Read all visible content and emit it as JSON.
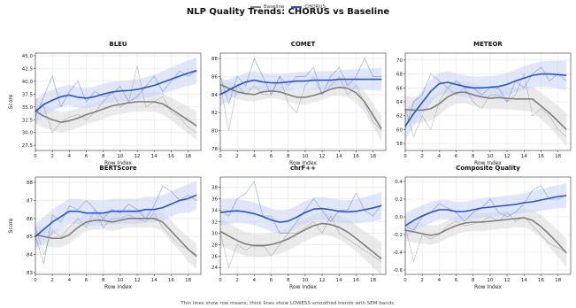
{
  "page": {
    "title": "NLP Quality Trends: CHORUS vs Baseline",
    "caption": "Thin lines show row means; thick lines show LOWESS-smoothed trends with SEM bands."
  },
  "legend": [
    {
      "label": "Baseline",
      "color": "#7f7f7f"
    },
    {
      "label": "CHORUS",
      "color": "#2a52cc"
    }
  ],
  "colors": {
    "baseline": "#7f7f7f",
    "chorus": "#2a52cc",
    "baseline_band": "#d9d9d9",
    "chorus_band": "#c7d3f5",
    "grid": "#e6e6e6"
  },
  "chart_data": [
    {
      "type": "line",
      "title": "BLEU",
      "xlabel": "Row Index",
      "ylabel": "Score",
      "x": [
        0,
        1,
        2,
        3,
        4,
        5,
        6,
        7,
        8,
        9,
        10,
        11,
        12,
        13,
        14,
        15,
        16,
        17,
        18,
        19
      ],
      "xlim": [
        0,
        19.5
      ],
      "xticks": [
        0,
        2,
        4,
        6,
        8,
        10,
        12,
        14,
        16,
        18
      ],
      "ylim": [
        26.5,
        45.5
      ],
      "yticks": [
        27.5,
        30.0,
        32.5,
        35.0,
        37.5,
        40.0,
        42.5,
        45.0
      ],
      "ytick_decimals": 1,
      "grid": true,
      "series": [
        {
          "name": "Baseline",
          "raw": [
            34.5,
            35,
            30,
            32,
            33,
            33.5,
            32.5,
            34,
            36,
            38,
            35,
            36,
            43,
            35,
            36,
            37,
            34,
            33,
            31,
            30
          ],
          "smooth": [
            34.2,
            33.2,
            32.5,
            32.0,
            32.3,
            32.8,
            33.5,
            34.0,
            34.6,
            35.2,
            35.5,
            35.8,
            36.0,
            36.0,
            36.0,
            35.6,
            34.6,
            33.5,
            32.4,
            31.3
          ],
          "sem": [
            2.5,
            2.3,
            2.1,
            2.0,
            2.0,
            1.9,
            1.9,
            1.9,
            1.9,
            1.9,
            1.9,
            1.9,
            1.9,
            1.9,
            2.0,
            2.1,
            2.2,
            2.4,
            2.6,
            2.8
          ]
        },
        {
          "name": "CHORUS",
          "raw": [
            33,
            37,
            41,
            35,
            38,
            40,
            36,
            38,
            37,
            37.5,
            39,
            36,
            37,
            39,
            41,
            38,
            40,
            42,
            41,
            42
          ],
          "smooth": [
            34.1,
            35.5,
            36.3,
            37.0,
            37.3,
            36.9,
            36.7,
            37.0,
            37.5,
            37.9,
            38.1,
            38.2,
            38.4,
            38.8,
            39.2,
            39.8,
            40.4,
            41.0,
            41.6,
            42.1
          ],
          "sem": [
            2.4,
            2.2,
            2.1,
            2.0,
            2.0,
            2.0,
            2.0,
            2.0,
            2.0,
            2.0,
            2.0,
            2.0,
            2.0,
            2.0,
            2.1,
            2.2,
            2.3,
            2.4,
            2.5,
            2.6
          ]
        }
      ]
    },
    {
      "type": "line",
      "title": "COMET",
      "xlabel": "Row Index",
      "ylabel": "",
      "x": [
        0,
        1,
        2,
        3,
        4,
        5,
        6,
        7,
        8,
        9,
        10,
        11,
        12,
        13,
        14,
        15,
        16,
        17,
        18,
        19
      ],
      "xlim": [
        0,
        19.5
      ],
      "xticks": [
        0,
        2,
        4,
        6,
        8,
        10,
        12,
        14,
        16,
        18
      ],
      "ylim": [
        77.8,
        88.6
      ],
      "yticks": [
        78,
        80,
        82,
        84,
        86,
        88
      ],
      "ytick_decimals": 0,
      "grid": true,
      "series": [
        {
          "name": "Baseline",
          "raw": [
            85,
            80,
            85,
            84,
            85,
            84,
            84,
            86,
            83,
            82,
            85,
            86,
            84,
            85,
            86,
            84,
            85,
            83,
            81,
            80
          ],
          "smooth": [
            85.1,
            84.7,
            84.3,
            84.1,
            84.0,
            84.3,
            84.4,
            84.3,
            84.0,
            83.7,
            83.7,
            83.9,
            84.2,
            84.6,
            84.8,
            84.7,
            84.2,
            83.2,
            81.7,
            80.2
          ],
          "sem": [
            0.9,
            0.8,
            0.8,
            0.8,
            0.8,
            0.8,
            0.8,
            0.8,
            0.8,
            0.8,
            0.8,
            0.8,
            0.8,
            0.8,
            0.9,
            1.0,
            1.1,
            1.2,
            1.3,
            1.4
          ]
        },
        {
          "name": "CHORUS",
          "raw": [
            86,
            83,
            86,
            85,
            88,
            86,
            84,
            86,
            85,
            86,
            86,
            87,
            84,
            86,
            87,
            85,
            86,
            88,
            86,
            86
          ],
          "smooth": [
            84.0,
            84.5,
            85.0,
            85.4,
            85.6,
            85.4,
            85.3,
            85.3,
            85.4,
            85.5,
            85.5,
            85.6,
            85.6,
            85.6,
            85.7,
            85.7,
            85.7,
            85.7,
            85.7,
            85.7
          ],
          "sem": [
            1.3,
            1.2,
            1.1,
            1.0,
            1.0,
            1.0,
            1.0,
            1.0,
            1.0,
            1.0,
            1.0,
            1.0,
            1.0,
            1.0,
            1.0,
            1.1,
            1.1,
            1.2,
            1.2,
            1.3
          ]
        }
      ]
    },
    {
      "type": "line",
      "title": "METEOR",
      "xlabel": "Row Index",
      "ylabel": "",
      "x": [
        0,
        1,
        2,
        3,
        4,
        5,
        6,
        7,
        8,
        9,
        10,
        11,
        12,
        13,
        14,
        15,
        16,
        17,
        18,
        19
      ],
      "xlim": [
        0,
        19.5
      ],
      "xticks": [
        0,
        2,
        4,
        6,
        8,
        10,
        12,
        14,
        16,
        18
      ],
      "ylim": [
        57,
        71
      ],
      "yticks": [
        58,
        60,
        62,
        64,
        66,
        68,
        70
      ],
      "ytick_decimals": 0,
      "grid": true,
      "series": [
        {
          "name": "Baseline",
          "raw": [
            63,
            59,
            62,
            60,
            64,
            66,
            65,
            66,
            64,
            63,
            65,
            65,
            64,
            65,
            68,
            62,
            63,
            62,
            60,
            59
          ],
          "smooth": [
            62.9,
            62.8,
            62.8,
            63.0,
            63.7,
            64.7,
            65.3,
            65.4,
            65.0,
            64.7,
            64.5,
            64.6,
            64.5,
            64.4,
            64.4,
            64.4,
            63.4,
            62.4,
            61.2,
            60.0
          ],
          "sem": [
            2.0,
            1.9,
            1.8,
            1.7,
            1.6,
            1.6,
            1.6,
            1.6,
            1.6,
            1.6,
            1.6,
            1.6,
            1.6,
            1.6,
            1.7,
            1.8,
            1.9,
            2.0,
            2.2,
            2.4
          ]
        },
        {
          "name": "CHORUS",
          "raw": [
            60,
            64,
            65,
            68,
            67,
            66,
            67,
            66,
            66,
            65,
            66,
            66,
            64,
            67,
            66,
            68,
            69,
            67,
            68,
            67
          ],
          "smooth": [
            60.5,
            62.3,
            63.9,
            65.5,
            66.6,
            66.8,
            66.5,
            66.2,
            66.0,
            66.0,
            66.1,
            66.2,
            66.5,
            67.0,
            67.4,
            67.8,
            68.0,
            68.0,
            67.9,
            67.8
          ],
          "sem": [
            2.0,
            1.9,
            1.8,
            1.7,
            1.6,
            1.6,
            1.6,
            1.6,
            1.6,
            1.6,
            1.6,
            1.6,
            1.6,
            1.6,
            1.7,
            1.7,
            1.8,
            1.9,
            2.0,
            2.1
          ]
        }
      ]
    },
    {
      "type": "line",
      "title": "BERTScore",
      "xlabel": "Row Index",
      "ylabel": "Score",
      "x": [
        0,
        1,
        2,
        3,
        4,
        5,
        6,
        7,
        8,
        9,
        10,
        11,
        12,
        13,
        14,
        15,
        16,
        17,
        18,
        19
      ],
      "xlim": [
        0,
        19.5
      ],
      "xticks": [
        0,
        2,
        4,
        6,
        8,
        10,
        12,
        14,
        16,
        18
      ],
      "ylim": [
        82.9,
        88.3
      ],
      "yticks": [
        83,
        84,
        85,
        86,
        87,
        88
      ],
      "ytick_decimals": 0,
      "grid": true,
      "series": [
        {
          "name": "Baseline",
          "raw": [
            85.5,
            84.0,
            85.3,
            85.0,
            85.5,
            86.0,
            85.5,
            86.5,
            85.5,
            86.0,
            86.0,
            86.2,
            86.0,
            85.8,
            86.3,
            85.5,
            85.0,
            84.5,
            84.3,
            84.0
          ],
          "smooth": [
            85.1,
            85.0,
            84.9,
            84.9,
            85.1,
            85.5,
            85.8,
            85.9,
            85.9,
            85.8,
            85.9,
            86.0,
            86.0,
            86.0,
            86.0,
            85.8,
            85.3,
            84.8,
            84.3,
            83.9
          ],
          "sem": [
            0.5,
            0.5,
            0.5,
            0.5,
            0.5,
            0.5,
            0.5,
            0.5,
            0.5,
            0.5,
            0.5,
            0.5,
            0.5,
            0.5,
            0.5,
            0.5,
            0.6,
            0.6,
            0.7,
            0.7
          ]
        },
        {
          "name": "CHORUS",
          "raw": [
            85.0,
            83.5,
            86.2,
            85.8,
            86.7,
            86.5,
            87.0,
            86.5,
            86.0,
            86.5,
            86.3,
            86.8,
            86.5,
            86.0,
            86.7,
            87.8,
            87.5,
            87.0,
            87.3,
            87.0
          ],
          "smooth": [
            85.0,
            85.4,
            85.8,
            86.1,
            86.4,
            86.4,
            86.3,
            86.3,
            86.3,
            86.4,
            86.4,
            86.4,
            86.4,
            86.5,
            86.5,
            86.6,
            86.8,
            87.0,
            87.1,
            87.3
          ],
          "sem": [
            0.7,
            0.7,
            0.7,
            0.7,
            0.7,
            0.7,
            0.7,
            0.7,
            0.7,
            0.7,
            0.7,
            0.7,
            0.7,
            0.7,
            0.7,
            0.7,
            0.7,
            0.7,
            0.8,
            0.8
          ]
        }
      ]
    },
    {
      "type": "line",
      "title": "chrF++",
      "xlabel": "Row Index",
      "ylabel": "",
      "x": [
        0,
        1,
        2,
        3,
        4,
        5,
        6,
        7,
        8,
        9,
        10,
        11,
        12,
        13,
        14,
        15,
        16,
        17,
        18,
        19
      ],
      "xlim": [
        0,
        19.5
      ],
      "xticks": [
        0,
        2,
        4,
        6,
        8,
        10,
        12,
        14,
        16,
        18
      ],
      "ylim": [
        22.8,
        39.8
      ],
      "yticks": [
        24,
        26,
        28,
        30,
        32,
        34,
        36,
        38
      ],
      "ytick_decimals": 0,
      "grid": true,
      "series": [
        {
          "name": "Baseline",
          "raw": [
            30,
            24,
            28,
            27,
            28,
            28,
            26,
            28,
            30,
            30,
            31,
            32,
            30,
            33,
            30,
            29,
            28,
            27,
            26,
            25
          ],
          "smooth": [
            30.3,
            29.5,
            28.7,
            28.1,
            27.8,
            27.8,
            28.0,
            28.4,
            29.0,
            29.8,
            30.6,
            31.3,
            31.7,
            31.5,
            31.0,
            30.2,
            29.1,
            27.9,
            26.7,
            25.5
          ],
          "sem": [
            2.5,
            2.3,
            2.2,
            2.1,
            2.0,
            2.0,
            2.0,
            2.0,
            2.0,
            2.0,
            2.0,
            2.0,
            2.0,
            2.0,
            2.1,
            2.2,
            2.3,
            2.5,
            2.7,
            2.9
          ]
        },
        {
          "name": "CHORUS",
          "raw": [
            34,
            33,
            36,
            37,
            39,
            33,
            33,
            30,
            30,
            32,
            34,
            36,
            34,
            32,
            34,
            34,
            37,
            34,
            33,
            35
          ],
          "smooth": [
            33.6,
            33.8,
            33.9,
            33.7,
            33.4,
            32.9,
            32.3,
            31.9,
            32.1,
            32.8,
            33.6,
            34.2,
            34.3,
            34.1,
            33.8,
            33.7,
            33.8,
            34.1,
            34.4,
            34.8
          ],
          "sem": [
            2.3,
            2.2,
            2.1,
            2.0,
            2.0,
            2.0,
            2.0,
            2.0,
            2.0,
            2.0,
            2.0,
            2.0,
            2.0,
            2.0,
            2.0,
            2.1,
            2.1,
            2.2,
            2.3,
            2.4
          ]
        }
      ]
    },
    {
      "type": "line",
      "title": "Composite Quality",
      "xlabel": "Row Index",
      "ylabel": "",
      "x": [
        0,
        1,
        2,
        3,
        4,
        5,
        6,
        7,
        8,
        9,
        10,
        11,
        12,
        13,
        14,
        15,
        16,
        17,
        18,
        19
      ],
      "xlim": [
        0,
        19.5
      ],
      "xticks": [
        0,
        2,
        4,
        6,
        8,
        10,
        12,
        14,
        16,
        18
      ],
      "ylim": [
        -0.65,
        0.45
      ],
      "yticks": [
        -0.6,
        -0.4,
        -0.2,
        0.0,
        0.2,
        0.4
      ],
      "ytick_decimals": 1,
      "grid": true,
      "series": [
        {
          "name": "Baseline",
          "raw": [
            -0.12,
            -0.5,
            -0.2,
            -0.25,
            -0.2,
            -0.1,
            -0.05,
            -0.1,
            -0.08,
            -0.05,
            0.0,
            -0.05,
            0.05,
            -0.05,
            0.0,
            -0.1,
            -0.2,
            -0.3,
            -0.35,
            -0.4
          ],
          "smooth": [
            -0.15,
            -0.17,
            -0.19,
            -0.21,
            -0.19,
            -0.14,
            -0.1,
            -0.07,
            -0.06,
            -0.06,
            -0.05,
            -0.04,
            -0.03,
            -0.02,
            -0.01,
            -0.04,
            -0.11,
            -0.2,
            -0.3,
            -0.41
          ],
          "sem": [
            0.12,
            0.12,
            0.11,
            0.11,
            0.1,
            0.1,
            0.1,
            0.1,
            0.1,
            0.1,
            0.1,
            0.1,
            0.1,
            0.1,
            0.11,
            0.12,
            0.13,
            0.14,
            0.15,
            0.16
          ]
        },
        {
          "name": "CHORUS",
          "raw": [
            -0.1,
            -0.15,
            0.0,
            0.05,
            0.15,
            0.1,
            0.05,
            -0.05,
            0.05,
            0.1,
            0.2,
            0.05,
            0.0,
            0.05,
            0.15,
            0.3,
            0.35,
            0.2,
            0.2,
            0.25
          ],
          "smooth": [
            -0.1,
            -0.04,
            0.01,
            0.05,
            0.08,
            0.08,
            0.06,
            0.06,
            0.08,
            0.1,
            0.11,
            0.12,
            0.13,
            0.14,
            0.16,
            0.17,
            0.19,
            0.21,
            0.23,
            0.24
          ],
          "sem": [
            0.14,
            0.13,
            0.12,
            0.12,
            0.11,
            0.11,
            0.11,
            0.11,
            0.11,
            0.11,
            0.11,
            0.11,
            0.11,
            0.11,
            0.11,
            0.12,
            0.12,
            0.13,
            0.13,
            0.14
          ]
        }
      ]
    }
  ]
}
